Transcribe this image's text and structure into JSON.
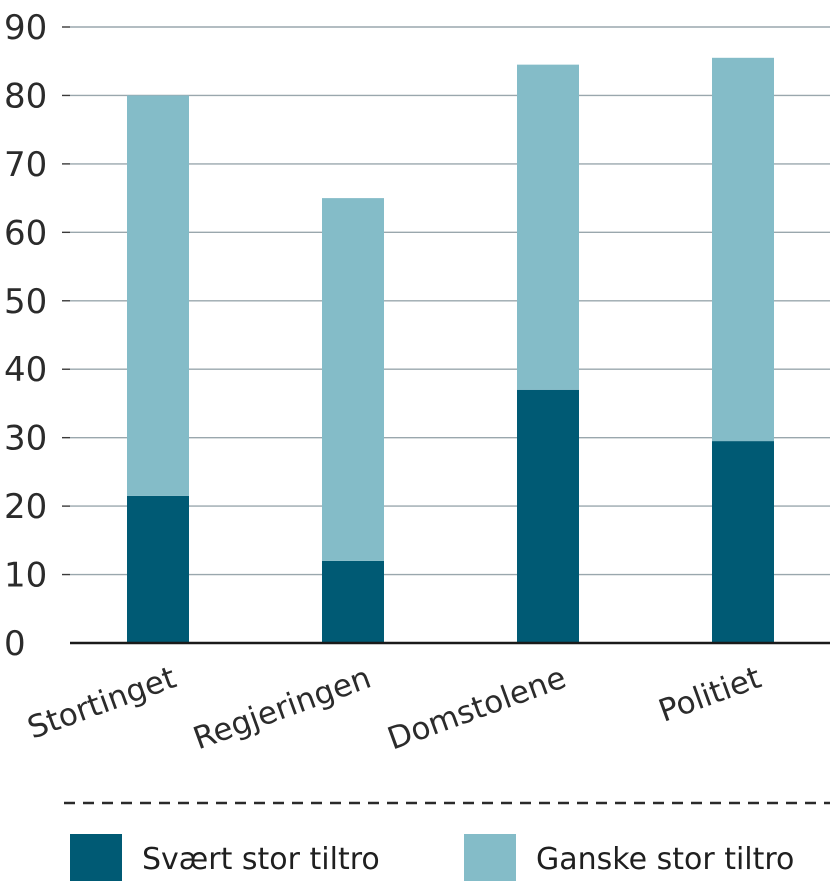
{
  "chart_data": {
    "type": "bar",
    "stacked": true,
    "categories": [
      "Stortinget",
      "Regjeringen",
      "Domstolene",
      "Politiet"
    ],
    "series": [
      {
        "name": "Svært stor tiltro",
        "color": "#005a74",
        "values": [
          21.5,
          12,
          37,
          29.5
        ]
      },
      {
        "name": "Ganske stor tiltro",
        "color": "#84bcc8",
        "values": [
          58.5,
          53,
          47.5,
          56
        ]
      }
    ],
    "title": "",
    "xlabel": "",
    "ylabel": "",
    "ylim": [
      0,
      90
    ],
    "yticks": [
      0,
      10,
      20,
      30,
      40,
      50,
      60,
      70,
      80,
      90
    ],
    "grid": true,
    "legend": "bottom"
  }
}
